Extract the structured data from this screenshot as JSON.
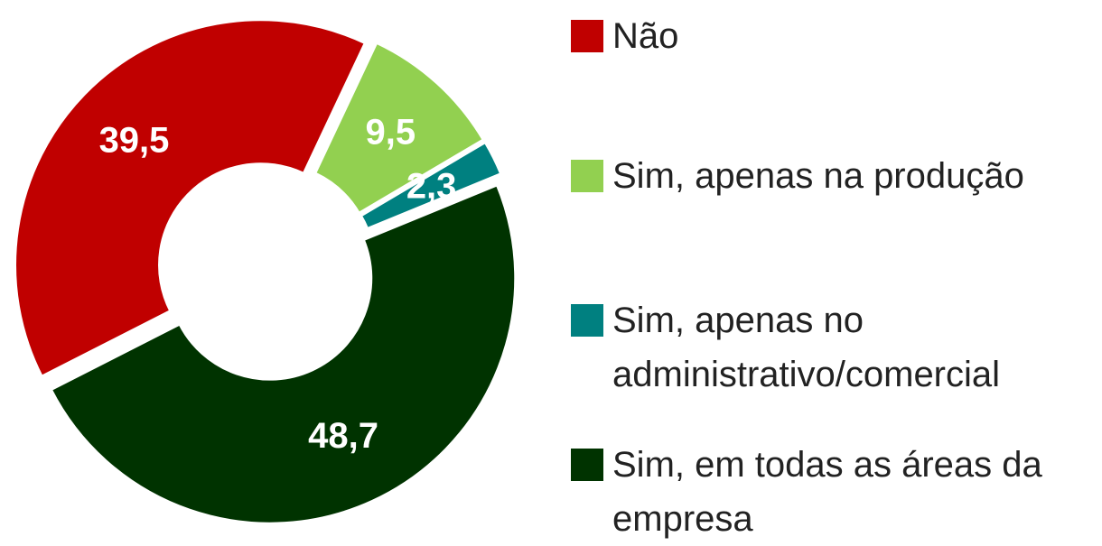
{
  "chart_data": {
    "type": "pie",
    "categories": [
      "Não",
      "Sim, apenas na produção",
      "Sim, apenas no administrativo/comercial",
      "Sim, em todas as áreas da empresa"
    ],
    "values": [
      39.5,
      9.5,
      2.3,
      48.7
    ],
    "value_labels": [
      "39,5",
      "9,5",
      "2,3",
      "48,7"
    ],
    "colors": [
      "#c00000",
      "#92d050",
      "#008080",
      "#003300"
    ],
    "legend": "right"
  }
}
